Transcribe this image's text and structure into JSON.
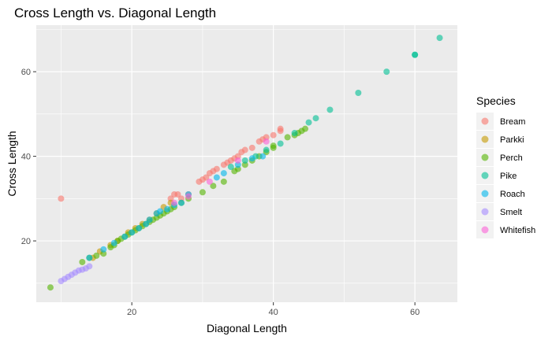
{
  "chart_data": {
    "type": "scatter",
    "title": "Cross Length vs. Diagonal Length",
    "xlabel": "Diagonal Length",
    "ylabel": "Cross Length",
    "xlim": [
      6.5,
      66
    ],
    "ylim": [
      5.5,
      71
    ],
    "x_ticks": [
      20,
      40,
      60
    ],
    "y_ticks": [
      20,
      40,
      60
    ],
    "x_tick_labels": [
      "20",
      "40",
      "60"
    ],
    "y_tick_labels": [
      "20",
      "40",
      "60"
    ],
    "grid": true,
    "legend": {
      "title": "Species",
      "placement": "right"
    },
    "series": [
      {
        "name": "Bream",
        "color": "#F8766D",
        "points": [
          [
            10,
            30
          ],
          [
            26,
            31
          ],
          [
            26.5,
            31
          ],
          [
            27,
            30
          ],
          [
            25.5,
            30
          ],
          [
            28,
            31
          ],
          [
            29.5,
            34
          ],
          [
            30,
            34.5
          ],
          [
            30.5,
            35
          ],
          [
            31,
            36
          ],
          [
            31.5,
            36.5
          ],
          [
            32,
            37
          ],
          [
            33,
            38
          ],
          [
            33.5,
            38.5
          ],
          [
            34,
            39
          ],
          [
            34.5,
            39.5
          ],
          [
            35,
            40
          ],
          [
            35.5,
            41
          ],
          [
            36,
            41.5
          ],
          [
            37,
            42
          ],
          [
            38,
            43.5
          ],
          [
            38.5,
            44
          ],
          [
            39,
            44.5
          ],
          [
            40,
            45
          ],
          [
            41,
            46.5
          ],
          [
            41,
            46
          ]
        ]
      },
      {
        "name": "Parkki",
        "color": "#C49A00",
        "points": [
          [
            14.5,
            16
          ],
          [
            15.5,
            17.5
          ],
          [
            17,
            19
          ],
          [
            18,
            20
          ],
          [
            19.5,
            22
          ],
          [
            20.5,
            23
          ],
          [
            21.5,
            24
          ],
          [
            22.5,
            25
          ],
          [
            23.5,
            26.5
          ],
          [
            24.5,
            28
          ],
          [
            25.5,
            29
          ]
        ]
      },
      {
        "name": "Perch",
        "color": "#53B400",
        "points": [
          [
            8.5,
            9
          ],
          [
            13,
            15
          ],
          [
            14,
            16
          ],
          [
            15,
            16.5
          ],
          [
            16,
            17
          ],
          [
            17,
            18.5
          ],
          [
            17.5,
            19
          ],
          [
            18,
            20
          ],
          [
            18.5,
            20.5
          ],
          [
            19,
            21
          ],
          [
            19.5,
            21.5
          ],
          [
            20,
            22
          ],
          [
            20.5,
            22.5
          ],
          [
            21,
            23
          ],
          [
            21.5,
            23.5
          ],
          [
            22,
            24
          ],
          [
            22.5,
            24.5
          ],
          [
            23,
            25
          ],
          [
            23.5,
            25.5
          ],
          [
            24,
            26
          ],
          [
            24.5,
            26.5
          ],
          [
            25,
            27
          ],
          [
            25.5,
            27.5
          ],
          [
            26,
            28
          ],
          [
            27,
            29
          ],
          [
            28,
            30
          ],
          [
            30,
            31.5
          ],
          [
            31.5,
            33
          ],
          [
            33,
            34
          ],
          [
            34.5,
            36.5
          ],
          [
            35,
            37
          ],
          [
            36,
            38
          ],
          [
            37,
            39
          ],
          [
            38,
            40
          ],
          [
            39,
            41
          ],
          [
            40,
            42
          ],
          [
            40,
            42.5
          ],
          [
            42,
            44.5
          ],
          [
            43,
            45
          ],
          [
            43.5,
            45.5
          ],
          [
            44,
            46
          ],
          [
            44.5,
            46.5
          ]
        ]
      },
      {
        "name": "Pike",
        "color": "#00C094",
        "points": [
          [
            34,
            37.5
          ],
          [
            36,
            39
          ],
          [
            37.5,
            40
          ],
          [
            39,
            41.5
          ],
          [
            41,
            43
          ],
          [
            43,
            45.5
          ],
          [
            45,
            48
          ],
          [
            46,
            49
          ],
          [
            48,
            51
          ],
          [
            52,
            55
          ],
          [
            56,
            60
          ],
          [
            60,
            64
          ],
          [
            60,
            64
          ],
          [
            63.5,
            68
          ]
        ]
      },
      {
        "name": "Roach",
        "color": "#00B6EB",
        "points": [
          [
            14,
            16
          ],
          [
            16,
            18
          ],
          [
            17.5,
            19.5
          ],
          [
            19,
            21
          ],
          [
            20,
            22
          ],
          [
            21,
            23
          ],
          [
            22,
            24
          ],
          [
            22.5,
            25
          ],
          [
            23.5,
            26.5
          ],
          [
            24,
            27
          ],
          [
            25,
            27.5
          ],
          [
            26,
            28.5
          ],
          [
            27,
            29
          ],
          [
            28,
            31
          ],
          [
            32,
            35
          ],
          [
            33,
            36
          ],
          [
            35,
            38
          ],
          [
            37,
            39.5
          ],
          [
            38.5,
            40
          ]
        ]
      },
      {
        "name": "Smelt",
        "color": "#A58AFF",
        "points": [
          [
            10,
            10.5
          ],
          [
            10.5,
            11
          ],
          [
            11,
            11.5
          ],
          [
            11.5,
            12
          ],
          [
            12,
            12.5
          ],
          [
            12.5,
            13
          ],
          [
            13,
            13.2
          ],
          [
            13.5,
            13.5
          ],
          [
            14,
            14
          ]
        ]
      },
      {
        "name": "Whitefish",
        "color": "#FB61D7",
        "points": [
          [
            26,
            29
          ],
          [
            28,
            30.5
          ],
          [
            31,
            34
          ],
          [
            35,
            39
          ],
          [
            39,
            43.5
          ]
        ]
      }
    ]
  }
}
